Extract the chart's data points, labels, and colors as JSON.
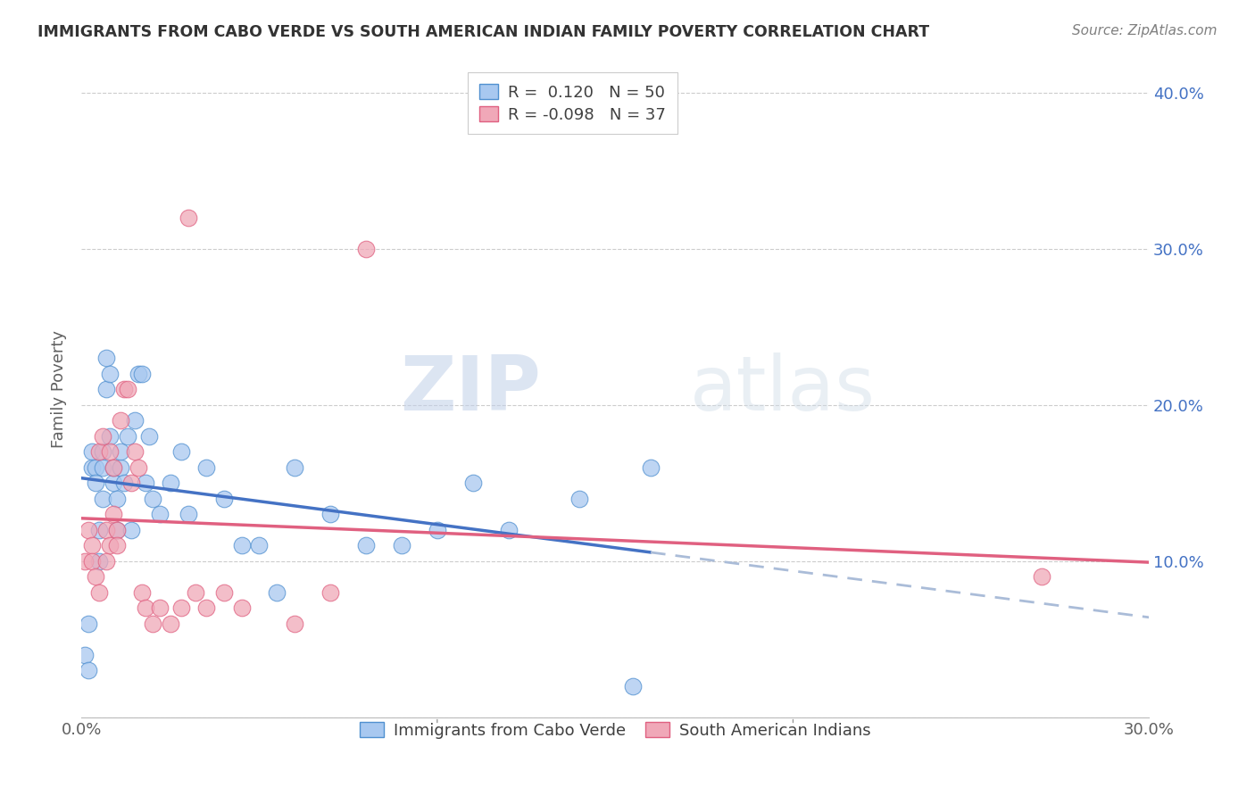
{
  "title": "IMMIGRANTS FROM CABO VERDE VS SOUTH AMERICAN INDIAN FAMILY POVERTY CORRELATION CHART",
  "source": "Source: ZipAtlas.com",
  "ylabel_label": "Family Poverty",
  "xlim": [
    0.0,
    0.3
  ],
  "ylim": [
    0.0,
    0.42
  ],
  "watermark_zip": "ZIP",
  "watermark_atlas": "atlas",
  "legend_entries": [
    {
      "label": "Immigrants from Cabo Verde",
      "R": " 0.120",
      "N": "50",
      "color": "#a8c8f0",
      "edge": "#4472c4"
    },
    {
      "label": "South American Indians",
      "R": "-0.098",
      "N": "37",
      "color": "#f0a8b8",
      "edge": "#e06080"
    }
  ],
  "cabo_verde_x": [
    0.001,
    0.002,
    0.002,
    0.003,
    0.003,
    0.004,
    0.004,
    0.005,
    0.005,
    0.006,
    0.006,
    0.006,
    0.007,
    0.007,
    0.008,
    0.008,
    0.009,
    0.009,
    0.01,
    0.01,
    0.011,
    0.011,
    0.012,
    0.013,
    0.014,
    0.015,
    0.016,
    0.017,
    0.018,
    0.019,
    0.02,
    0.022,
    0.025,
    0.028,
    0.03,
    0.035,
    0.04,
    0.045,
    0.05,
    0.055,
    0.06,
    0.07,
    0.08,
    0.09,
    0.1,
    0.11,
    0.12,
    0.14,
    0.155,
    0.16
  ],
  "cabo_verde_y": [
    0.04,
    0.06,
    0.03,
    0.17,
    0.16,
    0.16,
    0.15,
    0.12,
    0.1,
    0.17,
    0.16,
    0.14,
    0.23,
    0.21,
    0.22,
    0.18,
    0.15,
    0.16,
    0.14,
    0.12,
    0.16,
    0.17,
    0.15,
    0.18,
    0.12,
    0.19,
    0.22,
    0.22,
    0.15,
    0.18,
    0.14,
    0.13,
    0.15,
    0.17,
    0.13,
    0.16,
    0.14,
    0.11,
    0.11,
    0.08,
    0.16,
    0.13,
    0.11,
    0.11,
    0.12,
    0.15,
    0.12,
    0.14,
    0.02,
    0.16
  ],
  "south_american_x": [
    0.001,
    0.002,
    0.003,
    0.003,
    0.004,
    0.005,
    0.005,
    0.006,
    0.007,
    0.007,
    0.008,
    0.008,
    0.009,
    0.009,
    0.01,
    0.01,
    0.011,
    0.012,
    0.013,
    0.014,
    0.015,
    0.016,
    0.017,
    0.018,
    0.02,
    0.022,
    0.025,
    0.028,
    0.03,
    0.032,
    0.035,
    0.04,
    0.045,
    0.06,
    0.07,
    0.08,
    0.27
  ],
  "south_american_y": [
    0.1,
    0.12,
    0.11,
    0.1,
    0.09,
    0.08,
    0.17,
    0.18,
    0.12,
    0.1,
    0.11,
    0.17,
    0.16,
    0.13,
    0.12,
    0.11,
    0.19,
    0.21,
    0.21,
    0.15,
    0.17,
    0.16,
    0.08,
    0.07,
    0.06,
    0.07,
    0.06,
    0.07,
    0.32,
    0.08,
    0.07,
    0.08,
    0.07,
    0.06,
    0.08,
    0.3,
    0.09
  ],
  "cabo_verde_line_color": "#4472c4",
  "south_american_line_color": "#e06080",
  "dashed_line_color": "#aabcd8",
  "scatter_cabo_color": "#a8c8f0",
  "scatter_sa_color": "#f0a8b8",
  "scatter_cabo_edge": "#5090d0",
  "scatter_sa_edge": "#e06080",
  "grid_color": "#cccccc",
  "title_color": "#333333",
  "axis_tick_color": "#4472c4",
  "source_color": "#808080",
  "ylabel_color": "#606060",
  "background_color": "#ffffff",
  "yticks": [
    0.0,
    0.1,
    0.2,
    0.3,
    0.4
  ],
  "ytick_labels": [
    "",
    "10.0%",
    "20.0%",
    "30.0%",
    "40.0%"
  ]
}
